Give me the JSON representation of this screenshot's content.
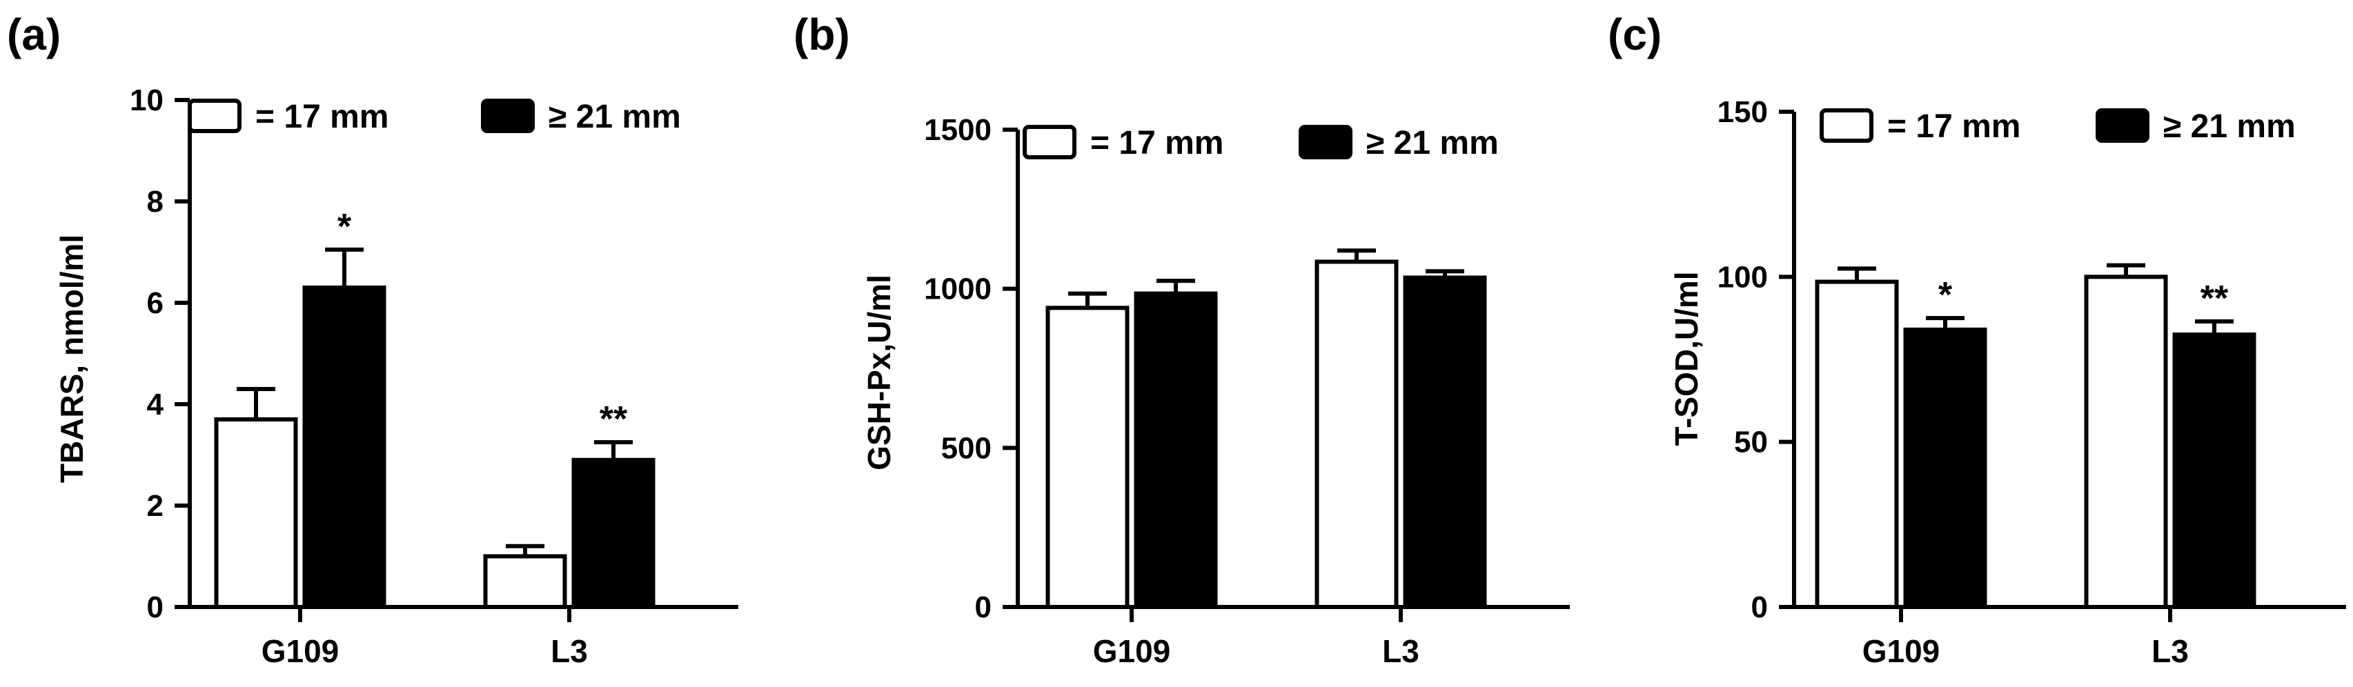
{
  "figure": {
    "panels": [
      "(a)",
      "(b)",
      "(c)"
    ]
  },
  "colors": {
    "series_17mm_fill": "#ffffff",
    "series_21mm_fill": "#000000",
    "stroke": "#000000"
  },
  "chart_data": [
    {
      "type": "bar",
      "panel_label": "(a)",
      "title": "",
      "xlabel": "",
      "ylabel": "TBARS, nmol/ml",
      "categories": [
        "G109",
        "L3"
      ],
      "ylim": [
        0,
        10
      ],
      "yticks": [
        "0",
        "2",
        "4",
        "6",
        "8",
        "10"
      ],
      "legend_position": "top-left",
      "series": [
        {
          "name": "= 17 mm",
          "values": [
            3.7,
            1.0
          ],
          "errors": [
            0.6,
            0.2
          ],
          "annotations": [
            "",
            ""
          ]
        },
        {
          "name": "≥ 21 mm",
          "values": [
            6.3,
            2.9
          ],
          "errors": [
            0.75,
            0.35
          ],
          "annotations": [
            "*",
            "**"
          ]
        }
      ]
    },
    {
      "type": "bar",
      "panel_label": "(b)",
      "title": "",
      "xlabel": "",
      "ylabel": "GSH-Px,U/ml",
      "categories": [
        "G109",
        "L3"
      ],
      "ylim": [
        0,
        1500
      ],
      "yticks": [
        "0",
        "500",
        "1000",
        "1500"
      ],
      "legend_position": "top-left",
      "series": [
        {
          "name": "= 17 mm",
          "values": [
            940,
            1085
          ],
          "errors": [
            45,
            35
          ],
          "annotations": [
            "",
            ""
          ]
        },
        {
          "name": "≥ 21 mm",
          "values": [
            985,
            1035
          ],
          "errors": [
            40,
            20
          ],
          "annotations": [
            "",
            ""
          ]
        }
      ]
    },
    {
      "type": "bar",
      "panel_label": "(c)",
      "title": "",
      "xlabel": "",
      "ylabel": "T-SOD,U/ml",
      "categories": [
        "G109",
        "L3"
      ],
      "ylim": [
        0,
        150
      ],
      "yticks": [
        "0",
        "50",
        "100",
        "150"
      ],
      "legend_position": "top-left",
      "series": [
        {
          "name": "= 17 mm",
          "values": [
            98.5,
            100
          ],
          "errors": [
            4,
            3.5
          ],
          "annotations": [
            "",
            ""
          ]
        },
        {
          "name": "≥ 21 mm",
          "values": [
            84,
            82.5
          ],
          "errors": [
            3.5,
            4
          ],
          "annotations": [
            "*",
            "**"
          ]
        }
      ]
    }
  ]
}
